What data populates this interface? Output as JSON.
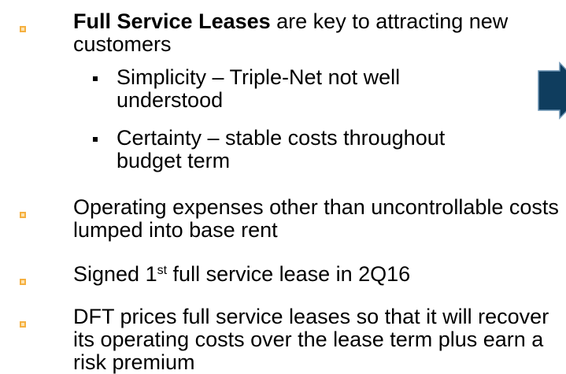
{
  "bullets": [
    {
      "bold": "Full Service Leases",
      "text": " are key to attracting new customers",
      "sub": [
        "Simplicity – Triple-Net not well understood",
        "Certainty – stable costs throughout budget term"
      ]
    },
    {
      "text": "Operating expenses other than uncontrollable costs lumped into base rent"
    },
    {
      "text_before": "Signed 1",
      "sup": "st",
      "text_after": " full service lease in 2Q16"
    },
    {
      "text": "DFT prices full service leases so that it will recover its operating costs over the lease term plus earn a risk premium"
    }
  ]
}
